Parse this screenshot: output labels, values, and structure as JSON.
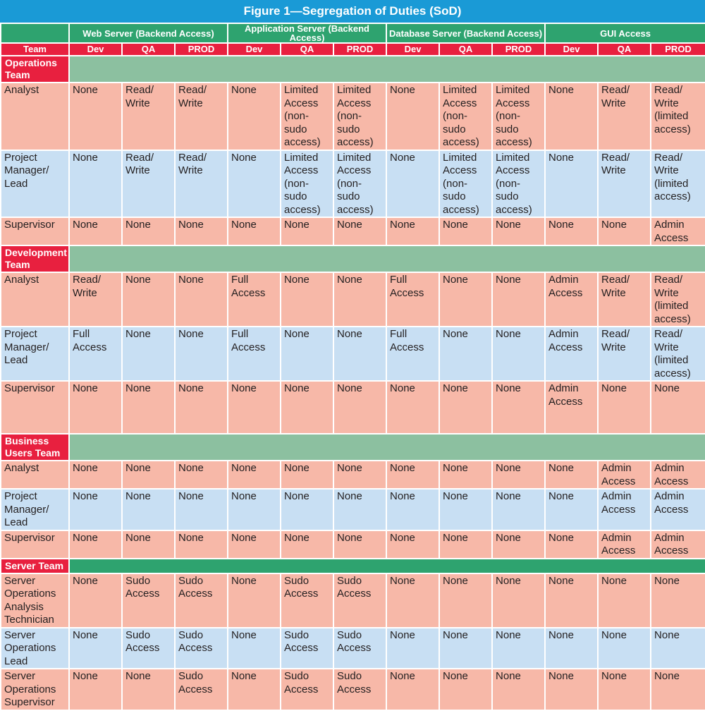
{
  "title": "Figure 1—Segregation of Duties (SoD)",
  "server_groups": [
    "Web Server (Backend Access)",
    "Application Server (Backend Access)",
    "Database Server (Backend Access)",
    "GUI Access"
  ],
  "columns": {
    "team": "Team",
    "env": [
      "Dev",
      "QA",
      "PROD",
      "Dev",
      "QA",
      "PROD",
      "Dev",
      "QA",
      "PROD",
      "Dev",
      "QA",
      "PROD"
    ]
  },
  "sections": [
    {
      "label": "Operations\nTeam",
      "rows": [
        {
          "role": "Analyst",
          "cells": [
            "None",
            "Read/\nWrite",
            "Read/\nWrite",
            "None",
            "Limited\nAccess\n(non-sudo\naccess)",
            "Limited\nAccess\n(non-sudo\naccess)",
            "None",
            "Limited\nAccess\n(non-sudo\naccess)",
            "Limited\nAccess\n(non-sudo\naccess)",
            "None",
            "Read/\nWrite",
            "Read/\nWrite\n(limited\naccess)"
          ]
        },
        {
          "role": "Project\nManager/\nLead",
          "cells": [
            "None",
            "Read/\nWrite",
            "Read/\nWrite",
            "None",
            "Limited\nAccess\n(non-sudo\naccess)",
            "Limited\nAccess\n(non-sudo\naccess)",
            "None",
            "Limited\nAccess\n(non-sudo\naccess)",
            "Limited\nAccess\n(non-sudo\naccess)",
            "None",
            "Read/\nWrite",
            "Read/\nWrite\n(limited\naccess)"
          ]
        },
        {
          "role": "Supervisor",
          "cells": [
            "None",
            "None",
            "None",
            "None",
            "None",
            "None",
            "None",
            "None",
            "None",
            "None",
            "None",
            "Admin\nAccess"
          ]
        }
      ]
    },
    {
      "label": "Development\nTeam",
      "rows": [
        {
          "role": "Analyst",
          "cells": [
            "Read/\nWrite",
            "None",
            "None",
            "Full\nAccess",
            "None",
            "None",
            "Full\nAccess",
            "None",
            "None",
            "Admin\nAccess",
            "Read/\nWrite",
            "Read/\nWrite\n(limited\naccess)"
          ]
        },
        {
          "role": "Project\nManager/\nLead",
          "cells": [
            "Full\nAccess",
            "None",
            "None",
            "Full\nAccess",
            "None",
            "None",
            "Full\nAccess",
            "None",
            "None",
            "Admin\nAccess",
            "Read/\nWrite",
            "Read/\nWrite\n(limited\naccess)"
          ]
        },
        {
          "role": "Supervisor",
          "cells": [
            "None",
            "None",
            "None",
            "None",
            "None",
            "None",
            "None",
            "None",
            "None",
            "Admin\nAccess",
            "None",
            "None"
          ]
        }
      ]
    },
    {
      "label": "Business\nUsers Team",
      "rows": [
        {
          "role": "Analyst",
          "cells": [
            "None",
            "None",
            "None",
            "None",
            "None",
            "None",
            "None",
            "None",
            "None",
            "None",
            "Admin\nAccess",
            "Admin\nAccess"
          ]
        },
        {
          "role": "Project\nManager/\nLead",
          "cells": [
            "None",
            "None",
            "None",
            "None",
            "None",
            "None",
            "None",
            "None",
            "None",
            "None",
            "Admin\nAccess",
            "Admin\nAccess"
          ]
        },
        {
          "role": "Supervisor",
          "cells": [
            "None",
            "None",
            "None",
            "None",
            "None",
            "None",
            "None",
            "None",
            "None",
            "None",
            "Admin\nAccess",
            "Admin\nAccess"
          ]
        }
      ]
    },
    {
      "label": "Server Team",
      "rows": [
        {
          "role": "Server\nOperations\nAnalysis\nTechnician",
          "cells": [
            "None",
            "Sudo\nAccess",
            "Sudo\nAccess",
            "None",
            "Sudo\nAccess",
            "Sudo\nAccess",
            "None",
            "None",
            "None",
            "None",
            "None",
            "None"
          ]
        },
        {
          "role": "Server\nOperations\nLead",
          "cells": [
            "None",
            "Sudo\nAccess",
            "Sudo\nAccess",
            "None",
            "Sudo\nAccess",
            "Sudo\nAccess",
            "None",
            "None",
            "None",
            "None",
            "None",
            "None"
          ]
        },
        {
          "role": "Server\nOperations\nSupervisor",
          "cells": [
            "None",
            "None",
            "Sudo\nAccess",
            "None",
            "Sudo\nAccess",
            "Sudo\nAccess",
            "None",
            "None",
            "None",
            "None",
            "None",
            "None"
          ]
        }
      ]
    }
  ]
}
